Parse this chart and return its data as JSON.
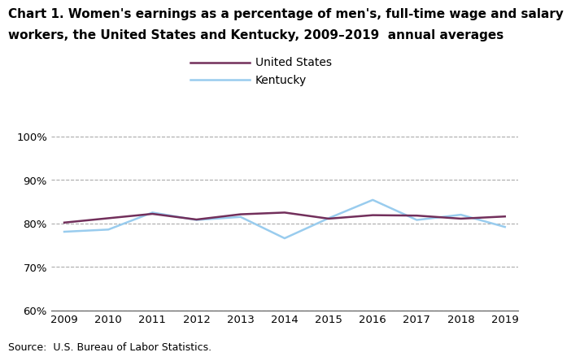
{
  "title_line1": "Chart 1. Women's earnings as a percentage of men's, full-time wage and salary",
  "title_line2": "workers, the United States and Kentucky, 2009–2019  annual averages",
  "years": [
    2009,
    2010,
    2011,
    2012,
    2013,
    2014,
    2015,
    2016,
    2017,
    2018,
    2019
  ],
  "us_values": [
    80.2,
    81.2,
    82.2,
    80.9,
    82.1,
    82.5,
    81.1,
    81.9,
    81.8,
    81.1,
    81.6
  ],
  "ky_values": [
    78.1,
    78.6,
    82.5,
    80.8,
    81.5,
    76.6,
    81.2,
    85.4,
    80.8,
    82.0,
    79.2
  ],
  "us_color": "#722f5b",
  "ky_color": "#99ccee",
  "us_label": "United States",
  "ky_label": "Kentucky",
  "ylim": [
    60,
    102
  ],
  "yticks": [
    60,
    70,
    80,
    90,
    100
  ],
  "xlim_min": 2009,
  "xlim_max": 2019,
  "source": "Source:  U.S. Bureau of Labor Statistics.",
  "grid_color": "#aaaaaa",
  "line_width": 1.8,
  "title_fontsize": 11,
  "tick_fontsize": 9.5,
  "legend_fontsize": 10,
  "source_fontsize": 9
}
